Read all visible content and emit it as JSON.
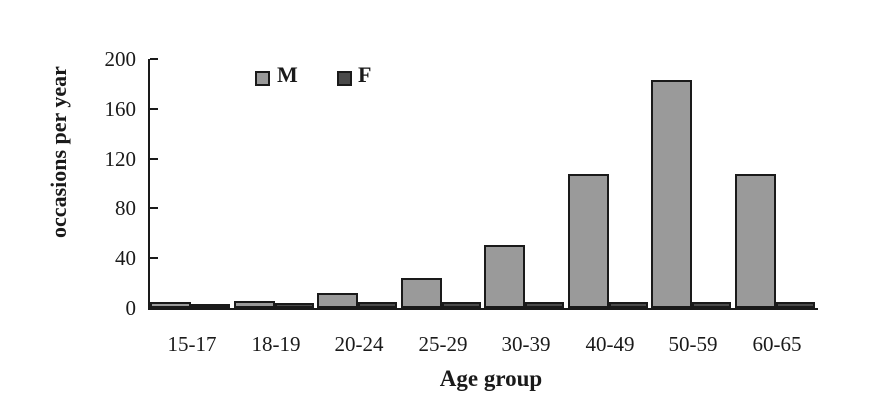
{
  "chart_data": {
    "type": "bar",
    "title": "",
    "xlabel": "Age group",
    "ylabel": "occasions per year",
    "categories": [
      "15-17",
      "18-19",
      "20-24",
      "25-29",
      "30-39",
      "40-49",
      "50-59",
      "60-65"
    ],
    "series": [
      {
        "name": "M",
        "color": "#9a9a9a",
        "values": [
          5,
          6,
          12,
          24,
          51,
          108,
          183,
          108
        ]
      },
      {
        "name": "F",
        "color": "#4a4a4a",
        "values": [
          3,
          4,
          5,
          5,
          5,
          5,
          5,
          5
        ]
      }
    ],
    "ylim": [
      0,
      200
    ],
    "yticks": [
      0,
      40,
      80,
      120,
      160,
      200
    ],
    "grid": false,
    "legend_position": "inside-top-left",
    "background": "#ffffff",
    "axis_color": "#1a1a1a",
    "bar_border_color": "#1a1a1a"
  }
}
